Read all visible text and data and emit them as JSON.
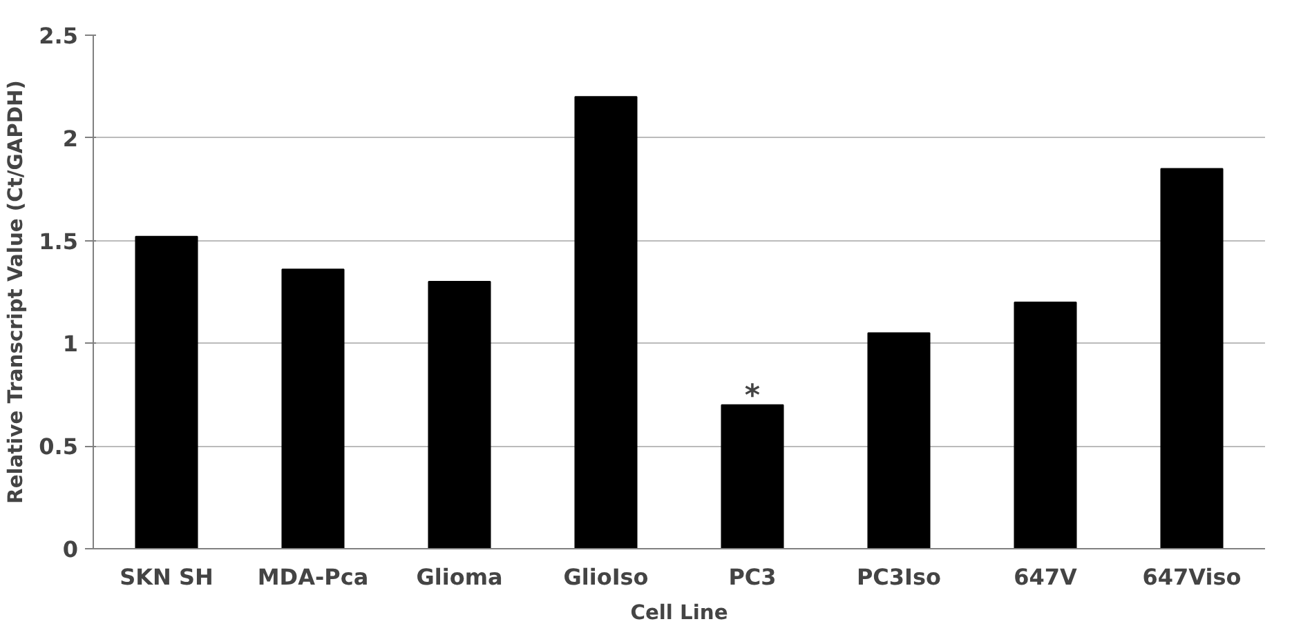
{
  "chart_data": {
    "type": "bar",
    "xlabel": "Cell Line",
    "ylabel": "Relative Transcript Value (Ct/GAPDH)",
    "categories": [
      "SKN SH",
      "MDA-Pca",
      "Glioma",
      "GlioIso",
      "PC3",
      "PC3Iso",
      "647V",
      "647Viso"
    ],
    "values": [
      1.52,
      1.36,
      1.3,
      2.2,
      0.7,
      1.05,
      1.2,
      1.85
    ],
    "color": "#000000",
    "ylim": [
      0,
      2.5
    ],
    "yticks": [
      0,
      0.5,
      1,
      1.5,
      2,
      2.5
    ],
    "grid": "y",
    "annotations": [
      {
        "text": "*",
        "x": "PC3",
        "y": 0.7
      }
    ]
  }
}
